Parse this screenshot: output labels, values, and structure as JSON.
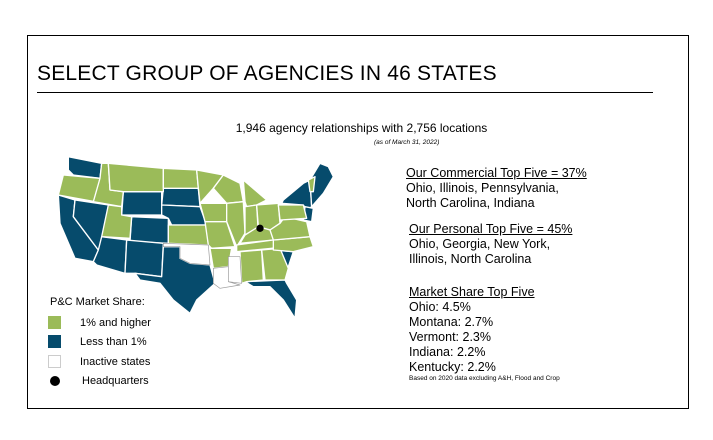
{
  "title": "SELECT GROUP OF AGENCIES IN 46 STATES",
  "subtitle": "1,946 agency relationships with 2,756 locations",
  "as_of": "(as of March 31, 2022)",
  "colors": {
    "active_high": "#9bbb59",
    "active_low": "#064b6c",
    "inactive": "#ffffff"
  },
  "commercial": {
    "heading": "Our Commercial Top Five = 37%",
    "line1": "Ohio, Illinois, Pennsylvania,",
    "line2": "North Carolina, Indiana"
  },
  "personal": {
    "heading": "Our Personal Top Five = 45%",
    "line1": "Ohio, Georgia, New York,",
    "line2": "Illinois, North Carolina"
  },
  "market_share": {
    "heading": "Market Share Top Five",
    "items": [
      "Ohio: 4.5%",
      "Montana: 2.7%",
      "Vermont: 2.3%",
      "Indiana: 2.2%",
      "Kentucky: 2.2%"
    ],
    "note": "Based on 2020 data excluding A&H, Flood and Crop"
  },
  "legend": {
    "title": "P&C Market Share:",
    "items": [
      "1% and higher",
      "Less than 1%",
      "Inactive states",
      "Headquarters"
    ]
  }
}
